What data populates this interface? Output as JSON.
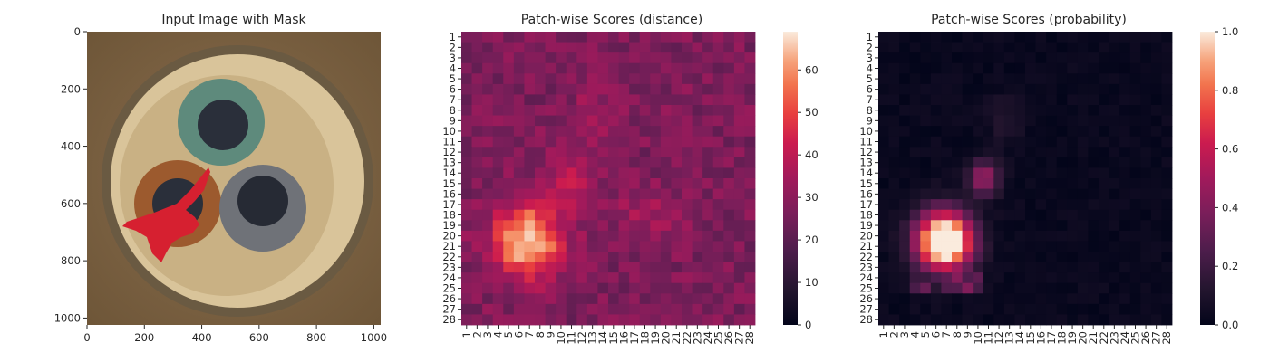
{
  "panels": {
    "image": {
      "title": "Input Image with Mask",
      "x_ticks": [
        "0",
        "200",
        "400",
        "600",
        "800",
        "1000"
      ],
      "y_ticks": [
        "0",
        "200",
        "400",
        "600",
        "800",
        "1000"
      ]
    },
    "distance": {
      "title": "Patch-wise Scores (distance)",
      "colorbar_ticks": [
        "0",
        "10",
        "20",
        "30",
        "40",
        "50",
        "60"
      ]
    },
    "probability": {
      "title": "Patch-wise Scores (probability)",
      "colorbar_ticks": [
        "0.0",
        "0.2",
        "0.4",
        "0.6",
        "0.8",
        "1.0"
      ]
    }
  },
  "chart_data": [
    {
      "type": "image",
      "title": "Input Image with Mask",
      "xlim": [
        0,
        1024
      ],
      "ylim": [
        1024,
        0
      ],
      "x_ticks": [
        0,
        200,
        400,
        600,
        800,
        1000
      ],
      "y_ticks": [
        0,
        200,
        400,
        600,
        800,
        1000
      ],
      "mask_color": "#d62030"
    },
    {
      "type": "heatmap",
      "title": "Patch-wise Scores (distance)",
      "rows": [
        "1",
        "2",
        "3",
        "4",
        "5",
        "6",
        "7",
        "8",
        "9",
        "10",
        "11",
        "12",
        "13",
        "14",
        "15",
        "16",
        "17",
        "18",
        "19",
        "20",
        "21",
        "22",
        "23",
        "24",
        "25",
        "26",
        "27",
        "28"
      ],
      "cols": [
        "1",
        "2",
        "3",
        "4",
        "5",
        "6",
        "7",
        "8",
        "9",
        "10",
        "11",
        "12",
        "13",
        "14",
        "15",
        "16",
        "17",
        "18",
        "19",
        "20",
        "21",
        "22",
        "23",
        "24",
        "25",
        "26",
        "27",
        "28"
      ],
      "vmin": 0,
      "vmax": 69,
      "colormap": "rocket",
      "hotspots": [
        {
          "row": 20,
          "col": 7,
          "value": 69
        },
        {
          "row": 9,
          "col": 13,
          "value": 38
        },
        {
          "row": 15,
          "col": 11,
          "value": 45
        },
        {
          "row": 18,
          "col": 18,
          "value": 38
        }
      ],
      "background_value": 27
    },
    {
      "type": "heatmap",
      "title": "Patch-wise Scores (probability)",
      "rows": [
        "1",
        "2",
        "3",
        "4",
        "5",
        "6",
        "7",
        "8",
        "9",
        "10",
        "11",
        "12",
        "13",
        "14",
        "15",
        "16",
        "17",
        "18",
        "19",
        "20",
        "21",
        "22",
        "23",
        "24",
        "25",
        "26",
        "27",
        "28"
      ],
      "cols": [
        "1",
        "2",
        "3",
        "4",
        "5",
        "6",
        "7",
        "8",
        "9",
        "10",
        "11",
        "12",
        "13",
        "14",
        "15",
        "16",
        "17",
        "18",
        "19",
        "20",
        "21",
        "22",
        "23",
        "24",
        "25",
        "26",
        "27",
        "28"
      ],
      "vmin": 0,
      "vmax": 1,
      "colormap": "rocket",
      "hotspots": [
        {
          "row": 20,
          "col": 7,
          "value": 1.0
        },
        {
          "row": 14,
          "col": 11,
          "value": 0.65
        }
      ],
      "background_value": 0.0
    }
  ]
}
